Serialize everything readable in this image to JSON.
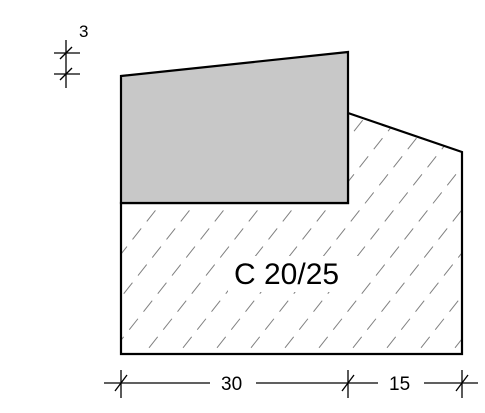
{
  "material_label": "C 20/25",
  "dimensions": {
    "left_width": "30",
    "right_width": "15",
    "top_offset": "3"
  },
  "colors": {
    "stroke": "#000000",
    "fill_upper": "#c8c8c8",
    "hatch": "#808080",
    "background": "#ffffff"
  }
}
